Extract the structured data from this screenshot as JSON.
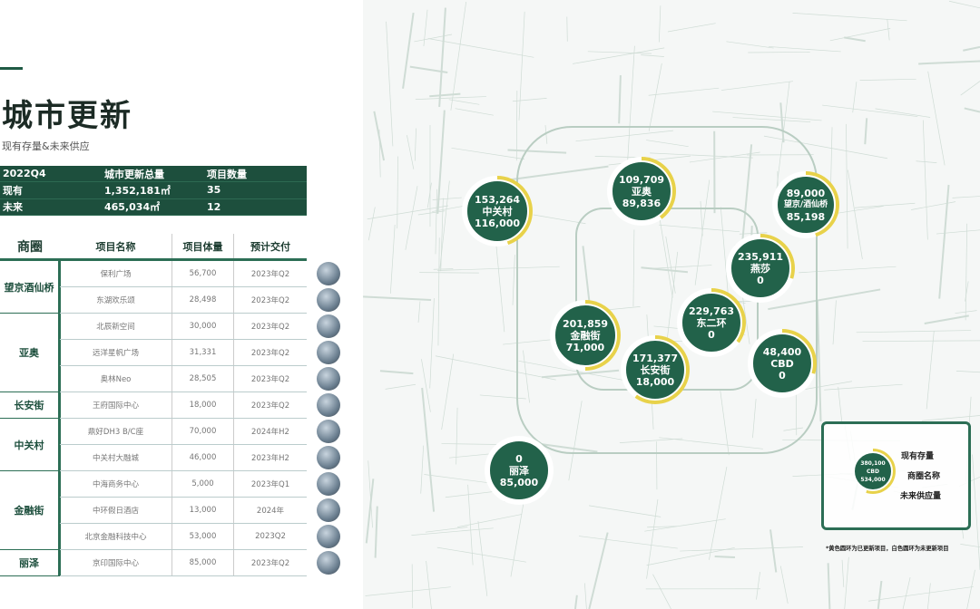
{
  "header": {
    "title": "城市更新",
    "subtitle": "现有存量&未来供应"
  },
  "summary": {
    "rows": [
      [
        "2022Q4",
        "城市更新总量",
        "项目数量"
      ],
      [
        "现有",
        "1,352,181㎡",
        "35"
      ],
      [
        "未来",
        "465,034㎡",
        "12"
      ]
    ]
  },
  "table": {
    "headers": [
      "商圈",
      "项目名称",
      "项目体量",
      "预计交付"
    ],
    "groups": [
      {
        "name": "望京酒仙桥",
        "span": 2
      },
      {
        "name": "亚奥",
        "span": 3
      },
      {
        "name": "长安街",
        "span": 1
      },
      {
        "name": "中关村",
        "span": 2
      },
      {
        "name": "金融街",
        "span": 3
      },
      {
        "name": "丽泽",
        "span": 1
      }
    ],
    "rows": [
      [
        "保利广场",
        "56,700",
        "2023年Q2"
      ],
      [
        "东湖欢乐颂",
        "28,498",
        "2023年Q2"
      ],
      [
        "北辰新空间",
        "30,000",
        "2023年Q2"
      ],
      [
        "远洋星帆广场",
        "31,331",
        "2023年Q2"
      ],
      [
        "奥林Neo",
        "28,505",
        "2023年Q2"
      ],
      [
        "王府国际中心",
        "18,000",
        "2023年Q2"
      ],
      [
        "鼎好DH3 B/C座",
        "70,000",
        "2024年H2"
      ],
      [
        "中关村大融城",
        "46,000",
        "2023年H2"
      ],
      [
        "中海商务中心",
        "5,000",
        "2023年Q1"
      ],
      [
        "中环假日酒店",
        "13,000",
        "2024年"
      ],
      [
        "北京金融科技中心",
        "53,000",
        "2023Q2"
      ],
      [
        "京印国际中心",
        "85,000",
        "2023年Q2"
      ]
    ]
  },
  "map": {
    "colors": {
      "bubble": "#22624a",
      "ring": "#e8d24a"
    },
    "bubbles": [
      {
        "existing": "153,264",
        "name": "中关村",
        "future": "116,000",
        "updated": 0.45
      },
      {
        "existing": "109,709",
        "name": "亚奥",
        "future": "89,836",
        "updated": 0.4
      },
      {
        "existing": "89,000",
        "name": "望京/酒仙桥",
        "future": "85,198",
        "updated": 0.45
      },
      {
        "existing": "235,911",
        "name": "燕莎",
        "future": "0",
        "updated": 0.3
      },
      {
        "existing": "229,763",
        "name": "东二环",
        "future": "0",
        "updated": 0.35
      },
      {
        "existing": "201,859",
        "name": "金融街",
        "future": "71,000",
        "updated": 0.5
      },
      {
        "existing": "171,377",
        "name": "长安街",
        "future": "18,000",
        "updated": 0.6
      },
      {
        "existing": "48,400",
        "name": "CBD",
        "future": "0",
        "updated": 0.3
      },
      {
        "existing": "0",
        "name": "丽泽",
        "future": "85,000",
        "updated": 0
      }
    ]
  },
  "legend": {
    "existing": "380,100",
    "name": "CBD",
    "future": "534,000",
    "label_existing": "现有存量",
    "label_name": "商圈名称",
    "label_future": "未来供应量",
    "note": "*黄色圆环为已更新项目，白色圆环为未更新项目"
  }
}
